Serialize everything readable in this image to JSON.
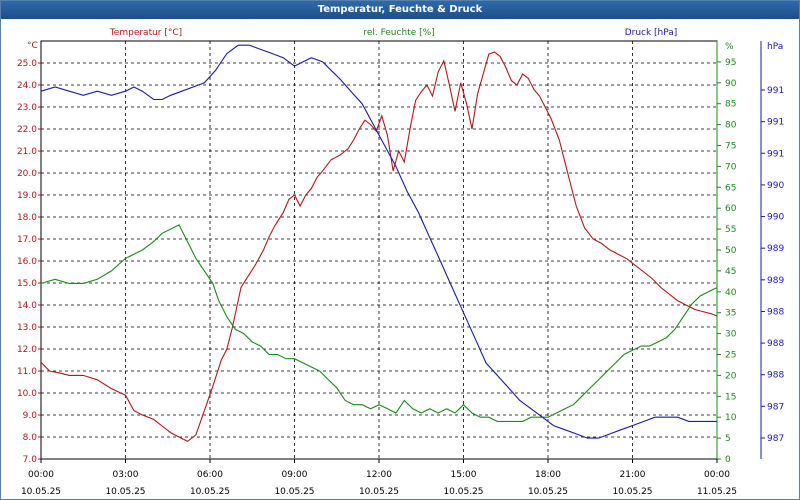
{
  "window": {
    "title": "Temperatur, Feuchte & Druck"
  },
  "colors": {
    "temperature": "#b01818",
    "humidity": "#1a8a1a",
    "pressure": "#1a1aa8"
  },
  "chart_data": {
    "type": "line",
    "title": "Temperatur, Feuchte & Druck",
    "grid": true,
    "x_ticks": [
      {
        "time": "00:00",
        "date": "10.05.25"
      },
      {
        "time": "03:00",
        "date": "10.05.25"
      },
      {
        "time": "06:00",
        "date": "10.05.25"
      },
      {
        "time": "09:00",
        "date": "10.05.25"
      },
      {
        "time": "12:00",
        "date": "10.05.25"
      },
      {
        "time": "15:00",
        "date": "10.05.25"
      },
      {
        "time": "18:00",
        "date": "10.05.25"
      },
      {
        "time": "21:00",
        "date": "10.05.25"
      },
      {
        "time": "00:00",
        "date": "11.05.25"
      }
    ],
    "x_range_hours": [
      0,
      24
    ],
    "axes": {
      "left": {
        "label": "Temperatur [°C]",
        "unit": "°C",
        "range": [
          7.0,
          26.0
        ],
        "ticks": [
          "7.0",
          "8.0",
          "9.0",
          "10.0",
          "11.0",
          "12.0",
          "13.0",
          "14.0",
          "15.0",
          "16.0",
          "17.0",
          "18.0",
          "19.0",
          "20.0",
          "21.0",
          "22.0",
          "23.0",
          "24.0",
          "25.0"
        ]
      },
      "right1": {
        "label": "rel. Feuchte [%]",
        "unit": "%",
        "range": [
          0,
          100
        ],
        "ticks": [
          "0",
          "5",
          "10",
          "15",
          "20",
          "25",
          "30",
          "35",
          "40",
          "45",
          "50",
          "55",
          "60",
          "65",
          "70",
          "75",
          "80",
          "85",
          "90",
          "95"
        ]
      },
      "right2": {
        "label": "Druck [hPa]",
        "unit": "hPa",
        "ticks": [
          "987",
          "987",
          "988",
          "988",
          "988",
          "989",
          "989",
          "990",
          "990",
          "991",
          "991",
          "991"
        ]
      }
    },
    "series": [
      {
        "name": "Temperatur [°C]",
        "axis": "left",
        "hours": [
          0,
          0.3,
          0.7,
          1,
          1.5,
          2,
          2.5,
          3,
          3.3,
          3.6,
          4,
          4.3,
          4.6,
          4.9,
          5.2,
          5.5,
          5.8,
          6.1,
          6.4,
          6.6,
          6.8,
          7.1,
          7.4,
          7.6,
          7.9,
          8.1,
          8.3,
          8.6,
          8.8,
          9,
          9.2,
          9.4,
          9.6,
          9.8,
          10,
          10.3,
          10.6,
          10.9,
          11.1,
          11.3,
          11.5,
          11.7,
          11.9,
          12.1,
          12.3,
          12.5,
          12.7,
          12.9,
          13.1,
          13.3,
          13.5,
          13.7,
          13.9,
          14.1,
          14.3,
          14.5,
          14.7,
          14.9,
          15.1,
          15.3,
          15.5,
          15.7,
          15.9,
          16.1,
          16.3,
          16.5,
          16.7,
          16.9,
          17.1,
          17.3,
          17.5,
          17.7,
          17.9,
          18.1,
          18.4,
          18.7,
          19,
          19.3,
          19.6,
          19.9,
          20.2,
          20.5,
          20.8,
          21.1,
          21.4,
          21.7,
          22,
          22.3,
          22.6,
          22.9,
          23.2,
          23.5,
          23.8,
          24
        ],
        "values": [
          11.4,
          11.0,
          10.9,
          10.8,
          10.8,
          10.6,
          10.2,
          9.9,
          9.2,
          9.0,
          8.8,
          8.5,
          8.2,
          8.0,
          7.8,
          8.1,
          9.2,
          10.3,
          11.5,
          12.0,
          13.0,
          14.8,
          15.4,
          15.8,
          16.5,
          17.1,
          17.6,
          18.2,
          18.8,
          19.0,
          18.5,
          19.0,
          19.3,
          19.8,
          20.1,
          20.6,
          20.8,
          21.1,
          21.5,
          22.0,
          22.4,
          22.2,
          21.9,
          22.6,
          21.7,
          20.1,
          21.0,
          20.5,
          22.0,
          23.3,
          23.7,
          24.0,
          23.5,
          24.6,
          25.1,
          24.0,
          22.8,
          24.1,
          23.2,
          22.0,
          23.6,
          24.5,
          25.4,
          25.5,
          25.3,
          24.8,
          24.2,
          24.0,
          24.5,
          24.3,
          23.8,
          23.5,
          23.0,
          22.5,
          21.5,
          20.0,
          18.5,
          17.5,
          17.0,
          16.8,
          16.5,
          16.3,
          16.1,
          15.8,
          15.5,
          15.2,
          14.8,
          14.5,
          14.2,
          14.0,
          13.8,
          13.7,
          13.6,
          13.5
        ]
      },
      {
        "name": "rel. Feuchte [%]",
        "axis": "right1",
        "hours": [
          0,
          0.5,
          1,
          1.5,
          2,
          2.5,
          3,
          3.3,
          3.6,
          4,
          4.3,
          4.6,
          4.9,
          5.2,
          5.5,
          5.8,
          6.1,
          6.3,
          6.6,
          6.9,
          7.2,
          7.5,
          7.8,
          8.1,
          8.4,
          8.7,
          9,
          9.3,
          9.6,
          9.9,
          10.2,
          10.5,
          10.8,
          11.1,
          11.4,
          11.7,
          12,
          12.3,
          12.6,
          12.9,
          13.2,
          13.5,
          13.8,
          14.1,
          14.4,
          14.7,
          15,
          15.3,
          15.6,
          15.9,
          16.2,
          16.5,
          16.8,
          17.1,
          17.4,
          17.7,
          18,
          18.3,
          18.6,
          18.9,
          19.2,
          19.5,
          19.8,
          20.1,
          20.4,
          20.7,
          21,
          21.3,
          21.6,
          21.9,
          22.2,
          22.5,
          22.8,
          23.1,
          23.4,
          23.7,
          24
        ],
        "values": [
          42,
          43,
          42,
          42,
          43,
          45,
          48,
          49,
          50,
          52,
          54,
          55,
          56,
          52,
          48,
          45,
          42,
          38,
          34,
          31,
          30,
          28,
          27,
          25,
          25,
          24,
          24,
          23,
          22,
          21,
          19,
          17,
          14,
          13,
          13,
          12,
          13,
          12,
          11,
          14,
          12,
          11,
          12,
          11,
          12,
          11,
          13,
          11,
          10,
          10,
          9,
          9,
          9,
          9,
          10,
          10,
          10,
          11,
          12,
          13,
          15,
          17,
          19,
          21,
          23,
          25,
          26,
          27,
          27,
          28,
          29,
          31,
          34,
          37,
          39,
          40,
          41
        ]
      },
      {
        "name": "Druck [hPa]",
        "axis": "right2",
        "hours": [
          0,
          0.5,
          1,
          1.5,
          2,
          2.5,
          3,
          3.3,
          3.6,
          4,
          4.3,
          4.6,
          5,
          5.4,
          5.8,
          6.2,
          6.6,
          7,
          7.4,
          7.8,
          8.2,
          8.6,
          9,
          9.3,
          9.6,
          10,
          10.3,
          10.6,
          11,
          11.4,
          11.8,
          12.2,
          12.6,
          13,
          13.4,
          13.8,
          14.2,
          14.6,
          15,
          15.4,
          15.8,
          16.2,
          16.6,
          17,
          17.4,
          17.8,
          18.2,
          18.6,
          19,
          19.4,
          19.8,
          20.2,
          20.6,
          21,
          21.4,
          21.8,
          22.2,
          22.6,
          23,
          23.4,
          23.8,
          24
        ],
        "values": [
          88,
          89,
          88,
          87,
          88,
          87,
          88,
          89,
          88,
          86,
          86,
          87,
          88,
          89,
          90,
          93,
          97,
          99,
          99,
          98,
          97,
          96,
          94,
          95,
          96,
          95,
          93,
          91,
          88,
          85,
          80,
          75,
          70,
          64,
          59,
          53,
          47,
          41,
          35,
          29,
          23,
          20,
          17,
          14,
          12,
          10,
          8,
          7,
          6,
          5,
          5,
          6,
          7,
          8,
          9,
          10,
          10,
          10,
          9,
          9,
          9,
          9
        ]
      }
    ]
  }
}
